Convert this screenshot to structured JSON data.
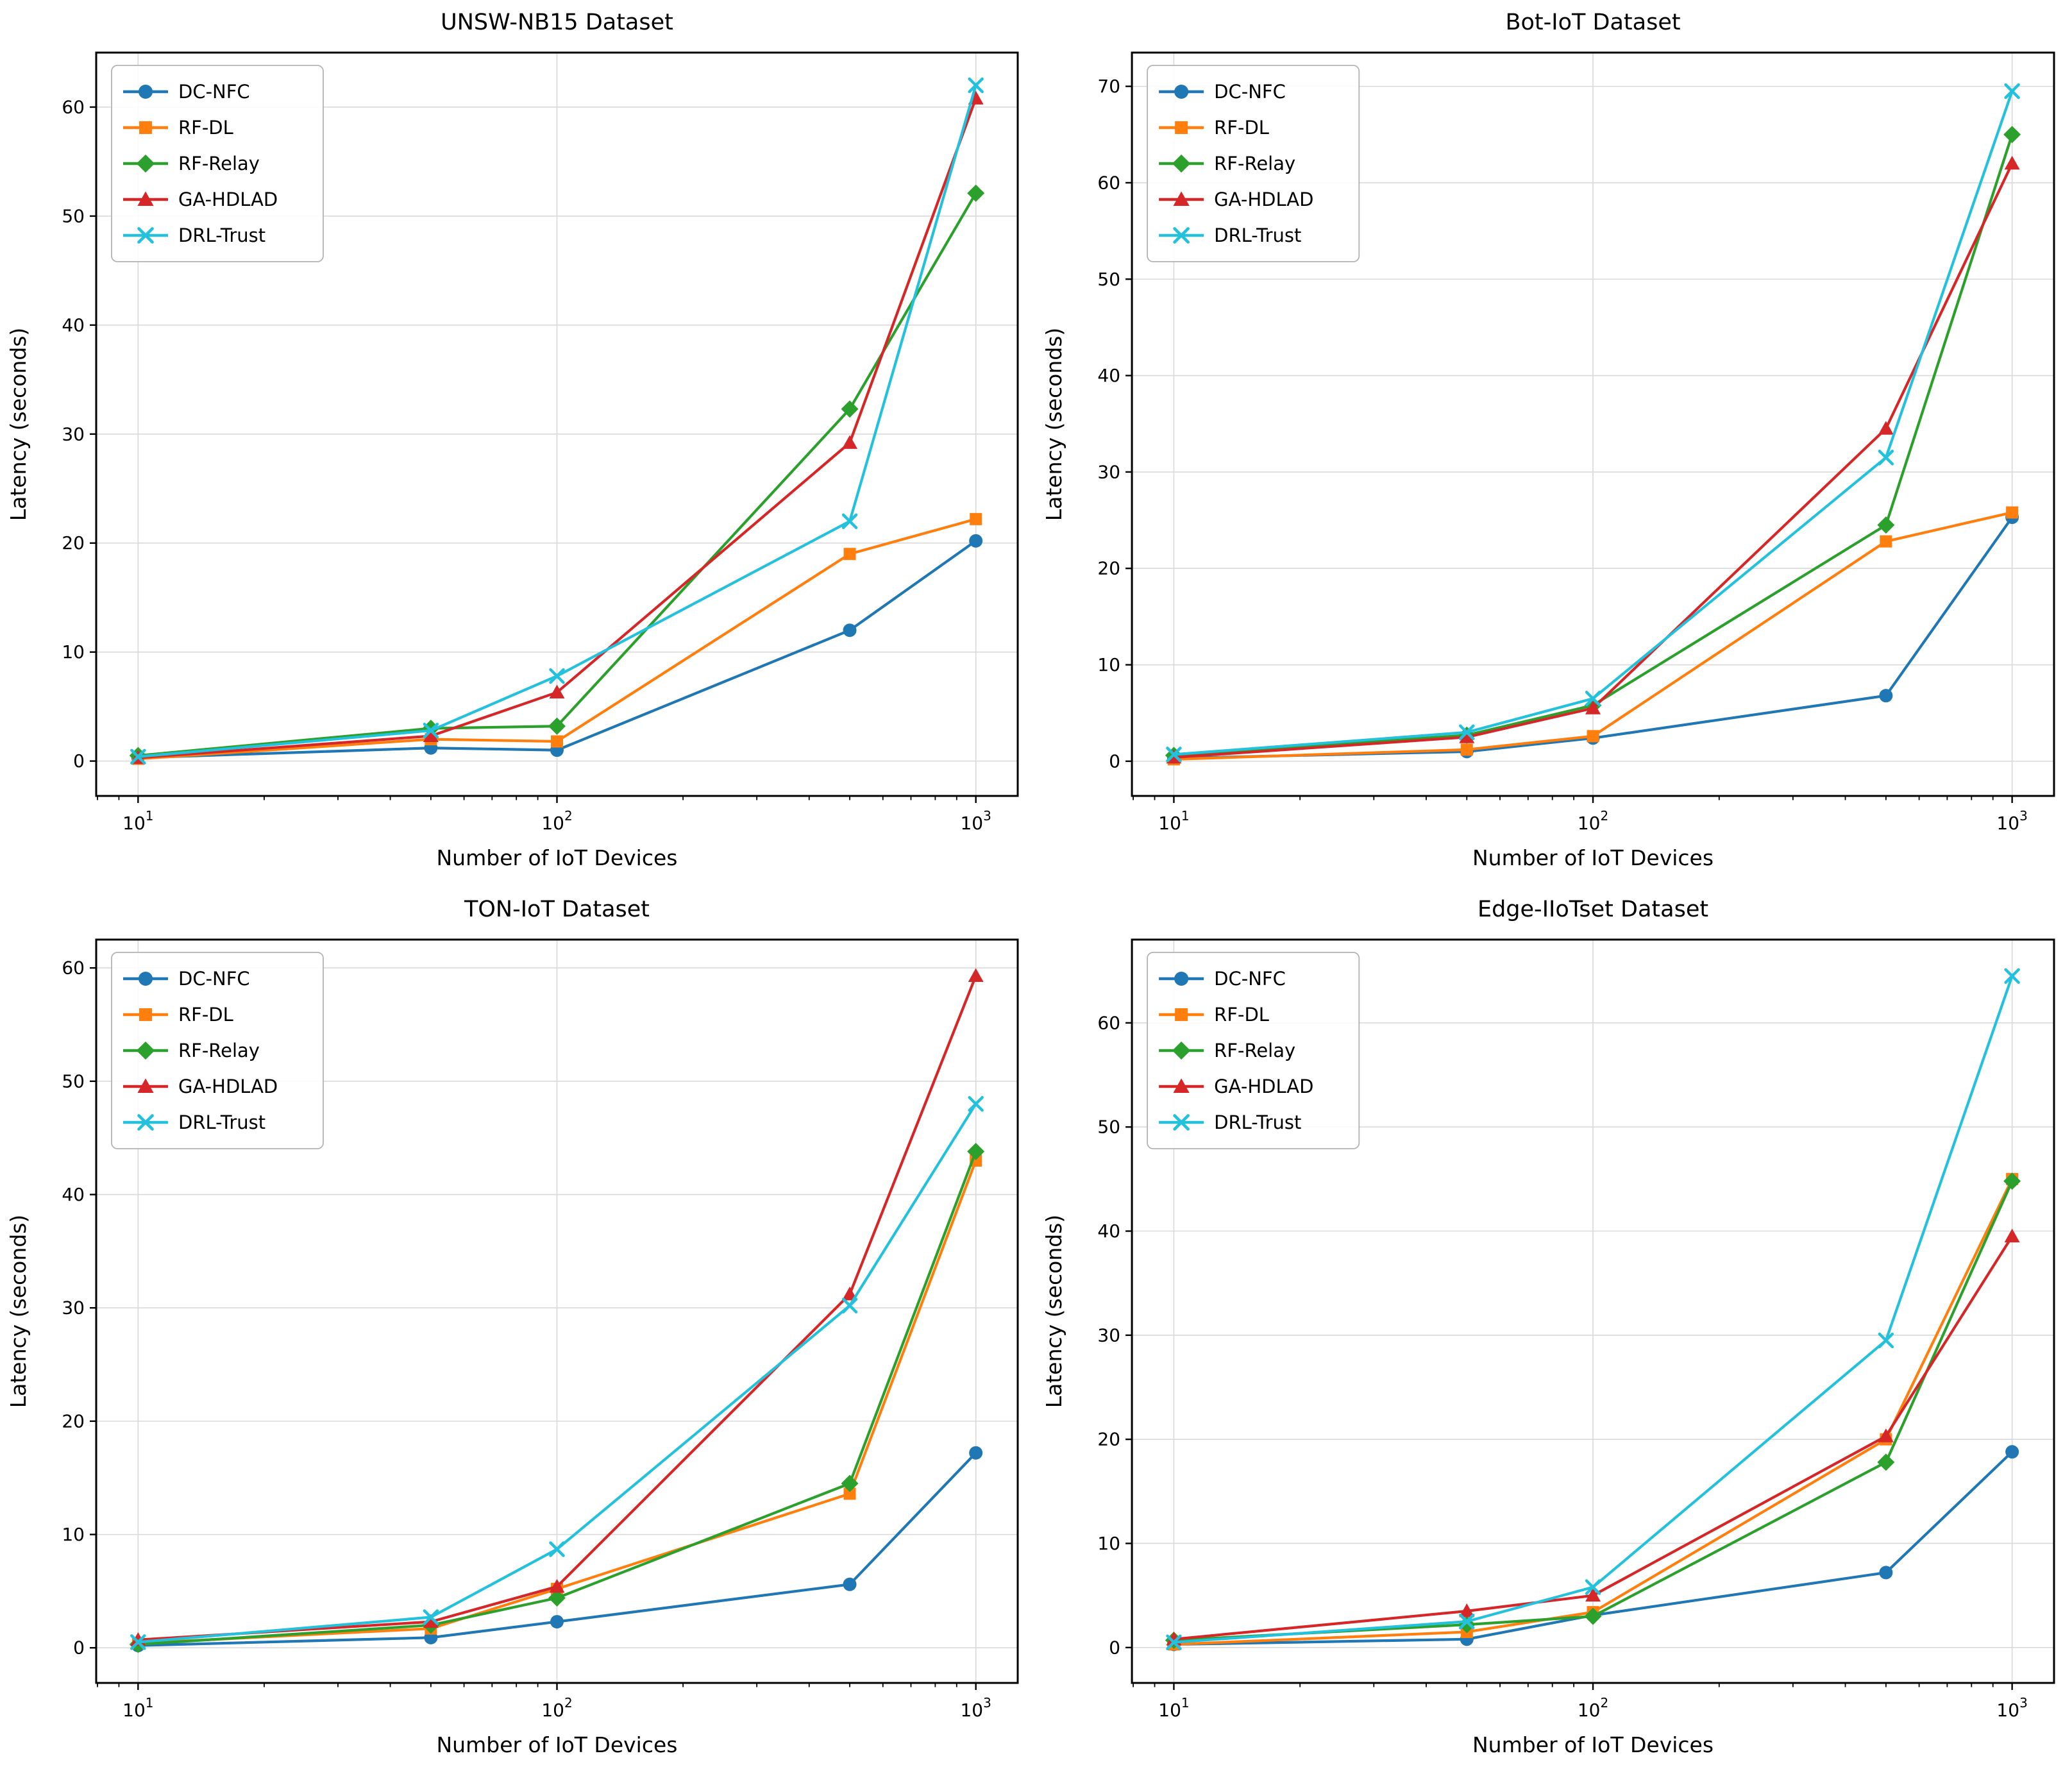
{
  "figure": {
    "background": "#ffffff",
    "grid_color": "#d9d9d9",
    "spine_color": "#000000",
    "legend_border_color": "#b3b3b3"
  },
  "chart_data": [
    {
      "type": "line",
      "title": "UNSW-NB15 Dataset",
      "xlabel": "Number of IoT Devices",
      "ylabel": "Latency (seconds)",
      "xscale": "log",
      "x": [
        10,
        50,
        100,
        500,
        1000
      ],
      "xticks": [
        10,
        100,
        1000
      ],
      "yticks": [
        0,
        10,
        20,
        30,
        40,
        50,
        60
      ],
      "ylim": [
        -3.2,
        65
      ],
      "xlim_log10": [
        0.9,
        3.1
      ],
      "grid": true,
      "legend_position": "upper left",
      "series": [
        {
          "name": "DC-NFC",
          "color": "#1f77b4",
          "marker": "circle",
          "values": [
            0.3,
            1.2,
            1.0,
            12.0,
            20.2
          ]
        },
        {
          "name": "RF-DL",
          "color": "#ff7f0e",
          "marker": "square",
          "values": [
            0.2,
            2.0,
            1.8,
            19.0,
            22.2
          ]
        },
        {
          "name": "RF-Relay",
          "color": "#2ca02c",
          "marker": "diamond",
          "values": [
            0.5,
            3.0,
            3.2,
            32.3,
            52.1
          ]
        },
        {
          "name": "GA-HDLAD",
          "color": "#d62728",
          "marker": "triangle-up",
          "values": [
            0.3,
            2.3,
            6.3,
            29.2,
            60.8
          ]
        },
        {
          "name": "DRL-Trust",
          "color": "#24c1dc",
          "marker": "x",
          "values": [
            0.4,
            2.8,
            7.8,
            22.0,
            62.0
          ]
        }
      ]
    },
    {
      "type": "line",
      "title": "Bot-IoT Dataset",
      "xlabel": "Number of IoT Devices",
      "ylabel": "Latency (seconds)",
      "xscale": "log",
      "x": [
        10,
        50,
        100,
        500,
        1000
      ],
      "xticks": [
        10,
        100,
        1000
      ],
      "yticks": [
        0,
        10,
        20,
        30,
        40,
        50,
        60,
        70
      ],
      "ylim": [
        -3.6,
        73.5
      ],
      "xlim_log10": [
        0.9,
        3.1
      ],
      "grid": true,
      "legend_position": "upper left",
      "series": [
        {
          "name": "DC-NFC",
          "color": "#1f77b4",
          "marker": "circle",
          "values": [
            0.3,
            1.0,
            2.4,
            6.8,
            25.3
          ]
        },
        {
          "name": "RF-DL",
          "color": "#ff7f0e",
          "marker": "square",
          "values": [
            0.2,
            1.2,
            2.6,
            22.8,
            25.8
          ]
        },
        {
          "name": "RF-Relay",
          "color": "#2ca02c",
          "marker": "diamond",
          "values": [
            0.6,
            2.7,
            5.8,
            24.5,
            65.0
          ]
        },
        {
          "name": "GA-HDLAD",
          "color": "#d62728",
          "marker": "triangle-up",
          "values": [
            0.4,
            2.5,
            5.5,
            34.5,
            62.0
          ]
        },
        {
          "name": "DRL-Trust",
          "color": "#24c1dc",
          "marker": "x",
          "values": [
            0.7,
            3.0,
            6.5,
            31.5,
            69.5
          ]
        }
      ]
    },
    {
      "type": "line",
      "title": "TON-IoT Dataset",
      "xlabel": "Number of IoT Devices",
      "ylabel": "Latency (seconds)",
      "xscale": "log",
      "x": [
        10,
        50,
        100,
        500,
        1000
      ],
      "xticks": [
        10,
        100,
        1000
      ],
      "yticks": [
        0,
        10,
        20,
        30,
        40,
        50,
        60
      ],
      "ylim": [
        -3.1,
        62.5
      ],
      "xlim_log10": [
        0.9,
        3.1
      ],
      "grid": true,
      "legend_position": "upper left",
      "series": [
        {
          "name": "DC-NFC",
          "color": "#1f77b4",
          "marker": "circle",
          "values": [
            0.2,
            0.9,
            2.3,
            5.6,
            17.2
          ]
        },
        {
          "name": "RF-DL",
          "color": "#ff7f0e",
          "marker": "square",
          "values": [
            0.4,
            1.7,
            5.2,
            13.6,
            43.0
          ]
        },
        {
          "name": "RF-Relay",
          "color": "#2ca02c",
          "marker": "diamond",
          "values": [
            0.3,
            2.0,
            4.4,
            14.5,
            43.8
          ]
        },
        {
          "name": "GA-HDLAD",
          "color": "#d62728",
          "marker": "triangle-up",
          "values": [
            0.7,
            2.3,
            5.4,
            31.2,
            59.3
          ]
        },
        {
          "name": "DRL-Trust",
          "color": "#24c1dc",
          "marker": "x",
          "values": [
            0.5,
            2.7,
            8.7,
            30.2,
            48.0
          ]
        }
      ]
    },
    {
      "type": "line",
      "title": "Edge-IIoTset Dataset",
      "xlabel": "Number of IoT Devices",
      "ylabel": "Latency (seconds)",
      "xscale": "log",
      "x": [
        10,
        50,
        100,
        500,
        1000
      ],
      "xticks": [
        10,
        100,
        1000
      ],
      "yticks": [
        0,
        10,
        20,
        30,
        40,
        50,
        60
      ],
      "ylim": [
        -3.4,
        68
      ],
      "xlim_log10": [
        0.9,
        3.1
      ],
      "grid": true,
      "legend_position": "upper left",
      "series": [
        {
          "name": "DC-NFC",
          "color": "#1f77b4",
          "marker": "circle",
          "values": [
            0.3,
            0.8,
            3.1,
            7.2,
            18.8
          ]
        },
        {
          "name": "RF-DL",
          "color": "#ff7f0e",
          "marker": "square",
          "values": [
            0.3,
            1.5,
            3.4,
            20.0,
            45.0
          ]
        },
        {
          "name": "RF-Relay",
          "color": "#2ca02c",
          "marker": "diamond",
          "values": [
            0.7,
            2.2,
            3.0,
            17.8,
            44.8
          ]
        },
        {
          "name": "GA-HDLAD",
          "color": "#d62728",
          "marker": "triangle-up",
          "values": [
            0.8,
            3.5,
            5.0,
            20.3,
            39.5
          ]
        },
        {
          "name": "DRL-Trust",
          "color": "#24c1dc",
          "marker": "x",
          "values": [
            0.5,
            2.5,
            5.8,
            29.5,
            64.5
          ]
        }
      ]
    }
  ]
}
